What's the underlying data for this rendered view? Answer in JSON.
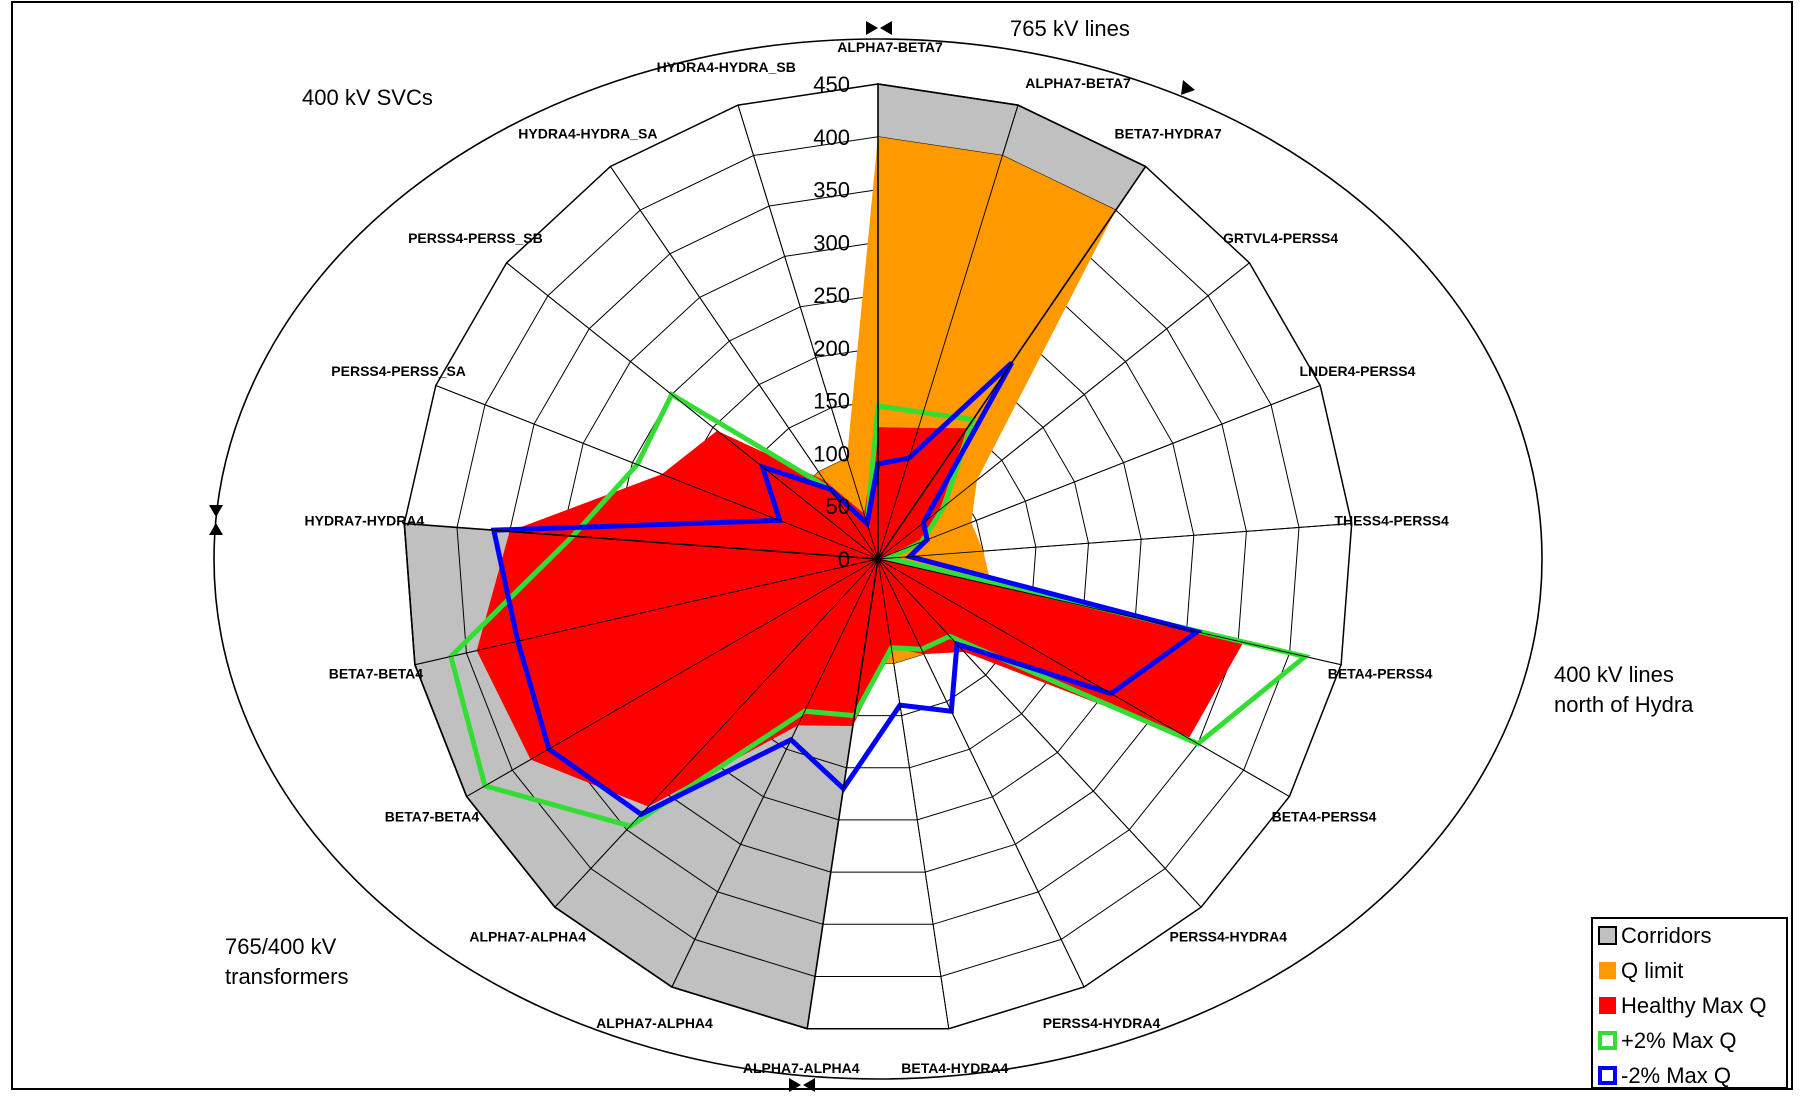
{
  "chart_data": {
    "type": "radar",
    "title": "",
    "r_range": [
      0,
      450
    ],
    "r_ticks": [
      0,
      50,
      100,
      150,
      200,
      250,
      300,
      350,
      400,
      450
    ],
    "r_tick_labels": [
      "0",
      "50",
      "100",
      "150",
      "200",
      "250",
      "300",
      "350",
      "400",
      "450"
    ],
    "grid": true,
    "categories": [
      "ALPHA7-BETA7",
      "ALPHA7-BETA7",
      "BETA7-HYDRA7",
      "GRTVL4-PERSS4",
      "LNDER4-PERSS4",
      "THESS4-PERSS4",
      "BETA4-PERSS4",
      "BETA4-PERSS4",
      "PERSS4-HYDRA4",
      "PERSS4-HYDRA4",
      "BETA4-HYDRA4",
      "ALPHA7-ALPHA4",
      "ALPHA7-ALPHA4",
      "ALPHA7-ALPHA4",
      "BETA7-BETA4",
      "BETA7-BETA4",
      "HYDRA7-HYDRA4",
      "PERSS4-PERSS_SA",
      "PERSS4-PERSS_SB",
      "HYDRA4-HYDRA_SA",
      "HYDRA4-HYDRA_SB"
    ],
    "series": [
      {
        "name": "Corridors",
        "color": "#c0c0c0",
        "style": "fill",
        "values": [
          450,
          450,
          450,
          0,
          0,
          0,
          0,
          0,
          0,
          0,
          0,
          450,
          450,
          450,
          450,
          450,
          450,
          0,
          0,
          0,
          0
        ]
      },
      {
        "name": "Q limit",
        "color": "#ff9900",
        "style": "fill",
        "values": [
          400,
          400,
          400,
          120,
          95,
          100,
          110,
          100,
          100,
          100,
          100,
          100,
          100,
          100,
          100,
          100,
          100,
          100,
          100,
          100,
          100
        ]
      },
      {
        "name": "Healthy Max Q",
        "color": "#ff0000",
        "style": "fill",
        "values": [
          125,
          130,
          150,
          75,
          40,
          10,
          355,
          340,
          120,
          100,
          85,
          160,
          175,
          320,
          380,
          390,
          350,
          220,
          195,
          90,
          45
        ]
      },
      {
        "name": "+2% Max Q",
        "color": "#33dd33",
        "style": "line",
        "values": [
          145,
          145,
          160,
          80,
          45,
          10,
          415,
          350,
          100,
          95,
          85,
          150,
          160,
          345,
          430,
          415,
          290,
          245,
          250,
          80,
          35
        ]
      },
      {
        "name": "-2% Max Q",
        "color": "#0000ff",
        "style": "line",
        "values": [
          90,
          100,
          225,
          55,
          50,
          30,
          310,
          255,
          110,
          160,
          140,
          220,
          190,
          330,
          360,
          350,
          365,
          100,
          140,
          80,
          35
        ]
      }
    ],
    "legend_position": "bottom-right"
  },
  "annotations": {
    "group_765_lines": "765 kV lines",
    "group_400_svcs": "400 kV SVCs",
    "group_400_lines_l1": "400 kV lines",
    "group_400_lines_l2": "north of Hydra",
    "group_transformers_l1": "765/400 kV",
    "group_transformers_l2": "transformers"
  },
  "legend": {
    "items": [
      {
        "label": "Corridors",
        "fill": "#c0c0c0",
        "stroke": "#000000"
      },
      {
        "label": "Q limit",
        "fill": "#ff9900",
        "stroke": "none"
      },
      {
        "label": "Healthy Max Q",
        "fill": "#ff0000",
        "stroke": "none"
      },
      {
        "label": "+2% Max Q",
        "fill": "#ffffff",
        "stroke": "#33dd33"
      },
      {
        "label": "-2% Max Q",
        "fill": "#ffffff",
        "stroke": "#0000ff"
      }
    ]
  }
}
